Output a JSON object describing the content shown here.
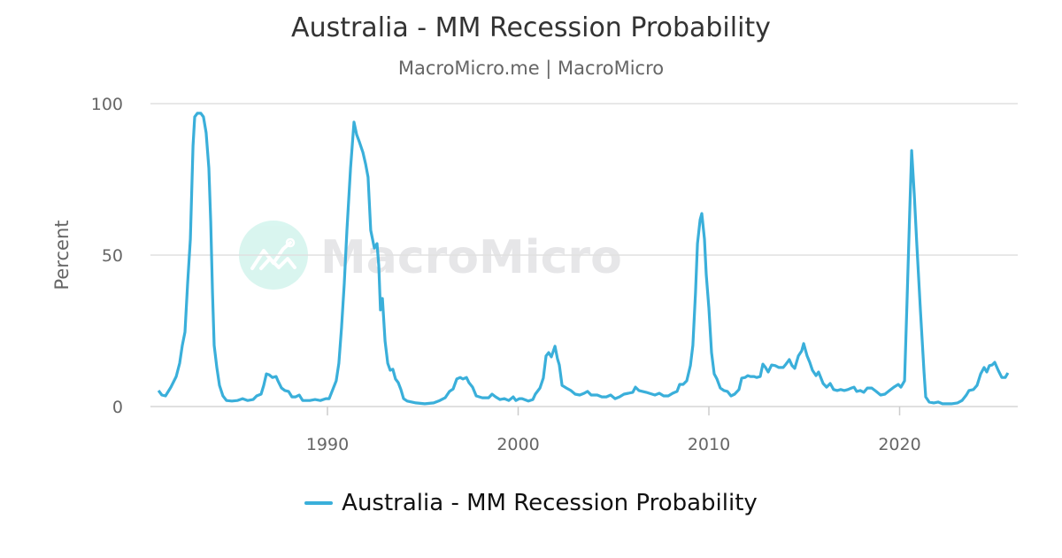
{
  "chart_data": {
    "type": "line",
    "title": "Australia - MM Recession Probability",
    "subtitle": "MacroMicro.me | MacroMicro",
    "ylabel": "Percent",
    "xlabel": "",
    "ylim": [
      0,
      100
    ],
    "xlim": [
      1980.75,
      2026.1
    ],
    "yticks": [
      "0",
      "50",
      "100"
    ],
    "xticks": [
      "1990",
      "2000",
      "2010",
      "2020"
    ],
    "grid": true,
    "legend_position": "bottom",
    "watermark": "MacroMicro",
    "series": [
      {
        "name": "Australia - MM Recession Probability",
        "color": "#3aafda",
        "points": [
          [
            1981.14,
            5.3
          ],
          [
            1981.32,
            3.8
          ],
          [
            1981.51,
            3.5
          ],
          [
            1981.79,
            6.4
          ],
          [
            1982.07,
            9.9
          ],
          [
            1982.25,
            14.3
          ],
          [
            1982.39,
            20.2
          ],
          [
            1982.53,
            24.6
          ],
          [
            1982.67,
            40.6
          ],
          [
            1982.81,
            55.3
          ],
          [
            1982.95,
            86.0
          ],
          [
            1983.04,
            95.6
          ],
          [
            1983.18,
            96.8
          ],
          [
            1983.36,
            96.8
          ],
          [
            1983.5,
            95.6
          ],
          [
            1983.64,
            90.4
          ],
          [
            1983.78,
            78.7
          ],
          [
            1983.88,
            61.1
          ],
          [
            1983.97,
            37.7
          ],
          [
            1984.06,
            20.2
          ],
          [
            1984.2,
            12.9
          ],
          [
            1984.34,
            7.0
          ],
          [
            1984.52,
            3.5
          ],
          [
            1984.71,
            2.0
          ],
          [
            1984.99,
            1.8
          ],
          [
            1985.27,
            2.0
          ],
          [
            1985.55,
            2.6
          ],
          [
            1985.82,
            2.0
          ],
          [
            1986.1,
            2.3
          ],
          [
            1986.29,
            3.5
          ],
          [
            1986.52,
            4.1
          ],
          [
            1986.66,
            7.0
          ],
          [
            1986.8,
            10.8
          ],
          [
            1986.94,
            10.5
          ],
          [
            1987.12,
            9.6
          ],
          [
            1987.31,
            9.9
          ],
          [
            1987.4,
            8.5
          ],
          [
            1987.59,
            6.1
          ],
          [
            1987.77,
            5.3
          ],
          [
            1987.96,
            5.0
          ],
          [
            1988.14,
            3.2
          ],
          [
            1988.33,
            3.2
          ],
          [
            1988.52,
            3.8
          ],
          [
            1988.7,
            2.0
          ],
          [
            1989.07,
            2.0
          ],
          [
            1989.35,
            2.3
          ],
          [
            1989.63,
            2.0
          ],
          [
            1989.91,
            2.6
          ],
          [
            1990.09,
            2.6
          ],
          [
            1990.28,
            5.6
          ],
          [
            1990.46,
            8.5
          ],
          [
            1990.6,
            14.3
          ],
          [
            1990.74,
            26.0
          ],
          [
            1990.88,
            40.6
          ],
          [
            1991.02,
            58.2
          ],
          [
            1991.21,
            78.7
          ],
          [
            1991.39,
            93.9
          ],
          [
            1991.53,
            89.8
          ],
          [
            1991.67,
            87.4
          ],
          [
            1991.86,
            83.9
          ],
          [
            1992.0,
            80.1
          ],
          [
            1992.13,
            75.7
          ],
          [
            1992.27,
            58.2
          ],
          [
            1992.46,
            52.3
          ],
          [
            1992.6,
            53.8
          ],
          [
            1992.69,
            46.5
          ],
          [
            1992.78,
            31.9
          ],
          [
            1992.88,
            35.7
          ],
          [
            1993.02,
            21.6
          ],
          [
            1993.16,
            14.3
          ],
          [
            1993.29,
            12.0
          ],
          [
            1993.43,
            12.3
          ],
          [
            1993.57,
            9.1
          ],
          [
            1993.71,
            7.9
          ],
          [
            1993.85,
            5.6
          ],
          [
            1993.99,
            2.6
          ],
          [
            1994.18,
            1.8
          ],
          [
            1994.64,
            1.2
          ],
          [
            1995.1,
            0.9
          ],
          [
            1995.57,
            1.2
          ],
          [
            1995.89,
            2.0
          ],
          [
            1996.17,
            2.9
          ],
          [
            1996.4,
            5.0
          ],
          [
            1996.59,
            5.8
          ],
          [
            1996.78,
            9.1
          ],
          [
            1996.96,
            9.6
          ],
          [
            1997.1,
            9.1
          ],
          [
            1997.29,
            9.6
          ],
          [
            1997.42,
            7.9
          ],
          [
            1997.61,
            6.4
          ],
          [
            1997.8,
            3.5
          ],
          [
            1998.12,
            2.9
          ],
          [
            1998.45,
            2.9
          ],
          [
            1998.63,
            4.1
          ],
          [
            1998.82,
            3.2
          ],
          [
            1999.05,
            2.3
          ],
          [
            1999.28,
            2.6
          ],
          [
            1999.51,
            2.0
          ],
          [
            1999.74,
            3.2
          ],
          [
            1999.88,
            2.0
          ],
          [
            2000.07,
            2.6
          ],
          [
            2000.21,
            2.6
          ],
          [
            2000.53,
            1.8
          ],
          [
            2000.77,
            2.3
          ],
          [
            2000.9,
            4.1
          ],
          [
            2001.14,
            6.1
          ],
          [
            2001.32,
            9.4
          ],
          [
            2001.46,
            16.7
          ],
          [
            2001.6,
            17.8
          ],
          [
            2001.74,
            16.4
          ],
          [
            2001.93,
            19.9
          ],
          [
            2002.06,
            15.8
          ],
          [
            2002.16,
            13.7
          ],
          [
            2002.3,
            7.0
          ],
          [
            2002.53,
            6.1
          ],
          [
            2002.76,
            5.3
          ],
          [
            2002.99,
            4.1
          ],
          [
            2003.23,
            3.8
          ],
          [
            2003.46,
            4.4
          ],
          [
            2003.64,
            5.0
          ],
          [
            2003.83,
            3.8
          ],
          [
            2004.15,
            3.8
          ],
          [
            2004.39,
            3.2
          ],
          [
            2004.62,
            3.2
          ],
          [
            2004.85,
            3.8
          ],
          [
            2005.08,
            2.6
          ],
          [
            2005.31,
            3.2
          ],
          [
            2005.55,
            4.1
          ],
          [
            2005.78,
            4.4
          ],
          [
            2006.01,
            4.7
          ],
          [
            2006.15,
            6.4
          ],
          [
            2006.33,
            5.3
          ],
          [
            2006.71,
            4.7
          ],
          [
            2007.17,
            3.8
          ],
          [
            2007.4,
            4.4
          ],
          [
            2007.63,
            3.5
          ],
          [
            2007.87,
            3.5
          ],
          [
            2008.1,
            4.4
          ],
          [
            2008.33,
            5.0
          ],
          [
            2008.47,
            7.3
          ],
          [
            2008.65,
            7.3
          ],
          [
            2008.84,
            8.5
          ],
          [
            2009.03,
            13.5
          ],
          [
            2009.16,
            20.2
          ],
          [
            2009.3,
            37.7
          ],
          [
            2009.4,
            53.8
          ],
          [
            2009.54,
            61.7
          ],
          [
            2009.63,
            63.7
          ],
          [
            2009.77,
            55.3
          ],
          [
            2009.86,
            43.6
          ],
          [
            2010.0,
            32.5
          ],
          [
            2010.14,
            17.8
          ],
          [
            2010.28,
            10.8
          ],
          [
            2010.42,
            9.1
          ],
          [
            2010.6,
            6.1
          ],
          [
            2010.79,
            5.3
          ],
          [
            2010.97,
            5.0
          ],
          [
            2011.16,
            3.5
          ],
          [
            2011.35,
            4.1
          ],
          [
            2011.58,
            5.6
          ],
          [
            2011.72,
            9.4
          ],
          [
            2011.9,
            9.6
          ],
          [
            2012.04,
            10.2
          ],
          [
            2012.18,
            9.9
          ],
          [
            2012.37,
            9.9
          ],
          [
            2012.51,
            9.6
          ],
          [
            2012.69,
            9.9
          ],
          [
            2012.83,
            14.0
          ],
          [
            2012.97,
            12.9
          ],
          [
            2013.11,
            11.4
          ],
          [
            2013.29,
            13.7
          ],
          [
            2013.48,
            13.5
          ],
          [
            2013.67,
            12.9
          ],
          [
            2013.9,
            12.9
          ],
          [
            2014.04,
            14.0
          ],
          [
            2014.22,
            15.5
          ],
          [
            2014.36,
            13.5
          ],
          [
            2014.5,
            12.6
          ],
          [
            2014.69,
            16.7
          ],
          [
            2014.87,
            18.4
          ],
          [
            2014.97,
            20.8
          ],
          [
            2015.15,
            16.7
          ],
          [
            2015.29,
            14.6
          ],
          [
            2015.43,
            12.0
          ],
          [
            2015.62,
            10.2
          ],
          [
            2015.75,
            11.4
          ],
          [
            2015.99,
            7.6
          ],
          [
            2016.17,
            6.4
          ],
          [
            2016.36,
            7.6
          ],
          [
            2016.54,
            5.6
          ],
          [
            2016.73,
            5.3
          ],
          [
            2016.91,
            5.6
          ],
          [
            2017.1,
            5.3
          ],
          [
            2017.29,
            5.6
          ],
          [
            2017.47,
            6.1
          ],
          [
            2017.61,
            6.4
          ],
          [
            2017.75,
            5.0
          ],
          [
            2017.94,
            5.3
          ],
          [
            2018.12,
            4.7
          ],
          [
            2018.31,
            6.1
          ],
          [
            2018.54,
            6.1
          ],
          [
            2018.77,
            5.0
          ],
          [
            2019.0,
            3.8
          ],
          [
            2019.23,
            4.1
          ],
          [
            2019.47,
            5.3
          ],
          [
            2019.7,
            6.4
          ],
          [
            2019.93,
            7.3
          ],
          [
            2020.07,
            6.4
          ],
          [
            2020.26,
            8.5
          ],
          [
            2020.39,
            34.8
          ],
          [
            2020.53,
            64.0
          ],
          [
            2020.63,
            84.5
          ],
          [
            2020.77,
            69.9
          ],
          [
            2020.9,
            53.8
          ],
          [
            2021.09,
            31.9
          ],
          [
            2021.28,
            11.4
          ],
          [
            2021.37,
            3.2
          ],
          [
            2021.55,
            1.5
          ],
          [
            2021.79,
            1.2
          ],
          [
            2022.02,
            1.5
          ],
          [
            2022.25,
            0.9
          ],
          [
            2022.71,
            0.9
          ],
          [
            2023.04,
            1.2
          ],
          [
            2023.27,
            2.0
          ],
          [
            2023.5,
            3.8
          ],
          [
            2023.64,
            5.3
          ],
          [
            2023.87,
            5.6
          ],
          [
            2024.06,
            7.0
          ],
          [
            2024.25,
            10.8
          ],
          [
            2024.43,
            12.9
          ],
          [
            2024.57,
            11.4
          ],
          [
            2024.71,
            13.5
          ],
          [
            2024.85,
            13.7
          ],
          [
            2024.99,
            14.6
          ],
          [
            2025.17,
            12.0
          ],
          [
            2025.36,
            9.6
          ],
          [
            2025.54,
            9.6
          ],
          [
            2025.68,
            11.1
          ]
        ]
      }
    ]
  }
}
